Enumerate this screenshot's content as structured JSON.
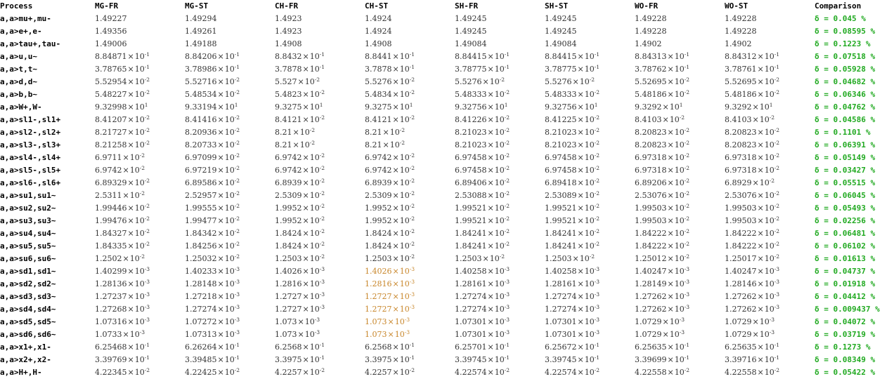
{
  "headers": [
    "Process",
    "MG-FR",
    "MG-ST",
    "CH-FR",
    "CH-ST",
    "SH-FR",
    "SH-ST",
    "WO-FR",
    "WO-ST",
    "Comparison"
  ],
  "colors": {
    "text": "#333333",
    "header": "#000000",
    "comparison": "#22aa22",
    "flagged": "#c8862a"
  },
  "rows": [
    {
      "process": "a,a>mu+,mu-",
      "values": [
        [
          "1.49227",
          null
        ],
        [
          "1.49294",
          null
        ],
        [
          "1.4923",
          null
        ],
        [
          "1.4924",
          null
        ],
        [
          "1.49245",
          null
        ],
        [
          "1.49245",
          null
        ],
        [
          "1.49228",
          null
        ],
        [
          "1.49228",
          null
        ]
      ],
      "comparison": "δ = 0.045 %"
    },
    {
      "process": "a,a>e+,e-",
      "values": [
        [
          "1.49356",
          null
        ],
        [
          "1.49261",
          null
        ],
        [
          "1.4923",
          null
        ],
        [
          "1.4924",
          null
        ],
        [
          "1.49245",
          null
        ],
        [
          "1.49245",
          null
        ],
        [
          "1.49228",
          null
        ],
        [
          "1.49228",
          null
        ]
      ],
      "comparison": "δ = 0.08595 %"
    },
    {
      "process": "a,a>tau+,tau-",
      "values": [
        [
          "1.49006",
          null
        ],
        [
          "1.49188",
          null
        ],
        [
          "1.4908",
          null
        ],
        [
          "1.4908",
          null
        ],
        [
          "1.49084",
          null
        ],
        [
          "1.49084",
          null
        ],
        [
          "1.4902",
          null
        ],
        [
          "1.4902",
          null
        ]
      ],
      "comparison": "δ = 0.1223 %"
    },
    {
      "process": "a,a>u,u~",
      "values": [
        [
          "8.84871",
          "-1"
        ],
        [
          "8.84206",
          "-1"
        ],
        [
          "8.8432",
          "-1"
        ],
        [
          "8.8441",
          "-1"
        ],
        [
          "8.84415",
          "-1"
        ],
        [
          "8.84415",
          "-1"
        ],
        [
          "8.84313",
          "-1"
        ],
        [
          "8.84312",
          "-1"
        ]
      ],
      "comparison": "δ = 0.07518 %"
    },
    {
      "process": "a,a>t,t~",
      "values": [
        [
          "3.78765",
          "-1"
        ],
        [
          "3.78986",
          "-1"
        ],
        [
          "3.7878",
          "-1"
        ],
        [
          "3.7878",
          "-1"
        ],
        [
          "3.78775",
          "-1"
        ],
        [
          "3.78775",
          "-1"
        ],
        [
          "3.78762",
          "-1"
        ],
        [
          "3.78761",
          "-1"
        ]
      ],
      "comparison": "δ = 0.05928 %"
    },
    {
      "process": "a,a>d,d~",
      "values": [
        [
          "5.52954",
          "-2"
        ],
        [
          "5.52716",
          "-2"
        ],
        [
          "5.527",
          "-2"
        ],
        [
          "5.5276",
          "-2"
        ],
        [
          "5.5276",
          "-2"
        ],
        [
          "5.5276",
          "-2"
        ],
        [
          "5.52695",
          "-2"
        ],
        [
          "5.52695",
          "-2"
        ]
      ],
      "comparison": "δ = 0.04682 %"
    },
    {
      "process": "a,a>b,b~",
      "values": [
        [
          "5.48227",
          "-2"
        ],
        [
          "5.48534",
          "-2"
        ],
        [
          "5.4823",
          "-2"
        ],
        [
          "5.4834",
          "-2"
        ],
        [
          "5.48333",
          "-2"
        ],
        [
          "5.48333",
          "-2"
        ],
        [
          "5.48186",
          "-2"
        ],
        [
          "5.48186",
          "-2"
        ]
      ],
      "comparison": "δ = 0.06346 %"
    },
    {
      "process": "a,a>W+,W-",
      "values": [
        [
          "9.32998",
          "1"
        ],
        [
          "9.33194",
          "1"
        ],
        [
          "9.3275",
          "1"
        ],
        [
          "9.3275",
          "1"
        ],
        [
          "9.32756",
          "1"
        ],
        [
          "9.32756",
          "1"
        ],
        [
          "9.3292",
          "1"
        ],
        [
          "9.3292",
          "1"
        ]
      ],
      "comparison": "δ = 0.04762 %"
    },
    {
      "process": "a,a>sl1-,sl1+",
      "values": [
        [
          "8.41207",
          "-2"
        ],
        [
          "8.41416",
          "-2"
        ],
        [
          "8.4121",
          "-2"
        ],
        [
          "8.4121",
          "-2"
        ],
        [
          "8.41226",
          "-2"
        ],
        [
          "8.41225",
          "-2"
        ],
        [
          "8.4103",
          "-2"
        ],
        [
          "8.4103",
          "-2"
        ]
      ],
      "comparison": "δ = 0.04586 %"
    },
    {
      "process": "a,a>sl2-,sl2+",
      "values": [
        [
          "8.21727",
          "-2"
        ],
        [
          "8.20936",
          "-2"
        ],
        [
          "8.21",
          "-2"
        ],
        [
          "8.21",
          "-2"
        ],
        [
          "8.21023",
          "-2"
        ],
        [
          "8.21023",
          "-2"
        ],
        [
          "8.20823",
          "-2"
        ],
        [
          "8.20823",
          "-2"
        ]
      ],
      "comparison": "δ = 0.1101 %"
    },
    {
      "process": "a,a>sl3-,sl3+",
      "values": [
        [
          "8.21258",
          "-2"
        ],
        [
          "8.20733",
          "-2"
        ],
        [
          "8.21",
          "-2"
        ],
        [
          "8.21",
          "-2"
        ],
        [
          "8.21023",
          "-2"
        ],
        [
          "8.21023",
          "-2"
        ],
        [
          "8.20823",
          "-2"
        ],
        [
          "8.20823",
          "-2"
        ]
      ],
      "comparison": "δ = 0.06391 %"
    },
    {
      "process": "a,a>sl4-,sl4+",
      "values": [
        [
          "6.9711",
          "-2"
        ],
        [
          "6.97099",
          "-2"
        ],
        [
          "6.9742",
          "-2"
        ],
        [
          "6.9742",
          "-2"
        ],
        [
          "6.97458",
          "-2"
        ],
        [
          "6.97458",
          "-2"
        ],
        [
          "6.97318",
          "-2"
        ],
        [
          "6.97318",
          "-2"
        ]
      ],
      "comparison": "δ = 0.05149 %"
    },
    {
      "process": "a,a>sl5-,sl5+",
      "values": [
        [
          "6.9742",
          "-2"
        ],
        [
          "6.97219",
          "-2"
        ],
        [
          "6.9742",
          "-2"
        ],
        [
          "6.9742",
          "-2"
        ],
        [
          "6.97458",
          "-2"
        ],
        [
          "6.97458",
          "-2"
        ],
        [
          "6.97318",
          "-2"
        ],
        [
          "6.97318",
          "-2"
        ]
      ],
      "comparison": "δ = 0.03427 %"
    },
    {
      "process": "a,a>sl6-,sl6+",
      "values": [
        [
          "6.89329",
          "-2"
        ],
        [
          "6.89586",
          "-2"
        ],
        [
          "6.8939",
          "-2"
        ],
        [
          "6.8939",
          "-2"
        ],
        [
          "6.89406",
          "-2"
        ],
        [
          "6.89418",
          "-2"
        ],
        [
          "6.89206",
          "-2"
        ],
        [
          "6.8929",
          "-2"
        ]
      ],
      "comparison": "δ = 0.05515 %"
    },
    {
      "process": "a,a>su1,su1~",
      "values": [
        [
          "2.5311",
          "-2"
        ],
        [
          "2.52957",
          "-2"
        ],
        [
          "2.5309",
          "-2"
        ],
        [
          "2.5309",
          "-2"
        ],
        [
          "2.53088",
          "-2"
        ],
        [
          "2.53089",
          "-2"
        ],
        [
          "2.53076",
          "-2"
        ],
        [
          "2.53076",
          "-2"
        ]
      ],
      "comparison": "δ = 0.06045 %"
    },
    {
      "process": "a,a>su2,su2~",
      "values": [
        [
          "1.99446",
          "-2"
        ],
        [
          "1.99555",
          "-2"
        ],
        [
          "1.9952",
          "-2"
        ],
        [
          "1.9952",
          "-2"
        ],
        [
          "1.99521",
          "-2"
        ],
        [
          "1.99521",
          "-2"
        ],
        [
          "1.99503",
          "-2"
        ],
        [
          "1.99503",
          "-2"
        ]
      ],
      "comparison": "δ = 0.05493 %"
    },
    {
      "process": "a,a>su3,su3~",
      "values": [
        [
          "1.99476",
          "-2"
        ],
        [
          "1.99477",
          "-2"
        ],
        [
          "1.9952",
          "-2"
        ],
        [
          "1.9952",
          "-2"
        ],
        [
          "1.99521",
          "-2"
        ],
        [
          "1.99521",
          "-2"
        ],
        [
          "1.99503",
          "-2"
        ],
        [
          "1.99503",
          "-2"
        ]
      ],
      "comparison": "δ = 0.02256 %"
    },
    {
      "process": "a,a>su4,su4~",
      "values": [
        [
          "1.84327",
          "-2"
        ],
        [
          "1.84342",
          "-2"
        ],
        [
          "1.8424",
          "-2"
        ],
        [
          "1.8424",
          "-2"
        ],
        [
          "1.84241",
          "-2"
        ],
        [
          "1.84241",
          "-2"
        ],
        [
          "1.84222",
          "-2"
        ],
        [
          "1.84222",
          "-2"
        ]
      ],
      "comparison": "δ = 0.06481 %"
    },
    {
      "process": "a,a>su5,su5~",
      "values": [
        [
          "1.84335",
          "-2"
        ],
        [
          "1.84256",
          "-2"
        ],
        [
          "1.8424",
          "-2"
        ],
        [
          "1.8424",
          "-2"
        ],
        [
          "1.84241",
          "-2"
        ],
        [
          "1.84241",
          "-2"
        ],
        [
          "1.84222",
          "-2"
        ],
        [
          "1.84222",
          "-2"
        ]
      ],
      "comparison": "δ = 0.06102 %"
    },
    {
      "process": "a,a>su6,su6~",
      "values": [
        [
          "1.2502",
          "-2"
        ],
        [
          "1.25032",
          "-2"
        ],
        [
          "1.2503",
          "-2"
        ],
        [
          "1.2503",
          "-2"
        ],
        [
          "1.2503",
          "-2"
        ],
        [
          "1.2503",
          "-2"
        ],
        [
          "1.25012",
          "-2"
        ],
        [
          "1.25017",
          "-2"
        ]
      ],
      "comparison": "δ = 0.01613 %"
    },
    {
      "process": "a,a>sd1,sd1~",
      "values": [
        [
          "1.40299",
          "-3"
        ],
        [
          "1.40233",
          "-3"
        ],
        [
          "1.4026",
          "-3"
        ],
        [
          "1.4026",
          "-3",
          "flag"
        ],
        [
          "1.40258",
          "-3"
        ],
        [
          "1.40258",
          "-3"
        ],
        [
          "1.40247",
          "-3"
        ],
        [
          "1.40247",
          "-3"
        ]
      ],
      "comparison": "δ = 0.04737 %"
    },
    {
      "process": "a,a>sd2,sd2~",
      "values": [
        [
          "1.28136",
          "-3"
        ],
        [
          "1.28148",
          "-3"
        ],
        [
          "1.2816",
          "-3"
        ],
        [
          "1.2816",
          "-3",
          "flag"
        ],
        [
          "1.28161",
          "-3"
        ],
        [
          "1.28161",
          "-3"
        ],
        [
          "1.28149",
          "-3"
        ],
        [
          "1.28146",
          "-3"
        ]
      ],
      "comparison": "δ = 0.01918 %"
    },
    {
      "process": "a,a>sd3,sd3~",
      "values": [
        [
          "1.27237",
          "-3"
        ],
        [
          "1.27218",
          "-3"
        ],
        [
          "1.2727",
          "-3"
        ],
        [
          "1.2727",
          "-3",
          "flag"
        ],
        [
          "1.27274",
          "-3"
        ],
        [
          "1.27274",
          "-3"
        ],
        [
          "1.27262",
          "-3"
        ],
        [
          "1.27262",
          "-3"
        ]
      ],
      "comparison": "δ = 0.04412 %"
    },
    {
      "process": "a,a>sd4,sd4~",
      "values": [
        [
          "1.27268",
          "-3"
        ],
        [
          "1.27274",
          "-3"
        ],
        [
          "1.2727",
          "-3"
        ],
        [
          "1.2727",
          "-3",
          "flag"
        ],
        [
          "1.27274",
          "-3"
        ],
        [
          "1.27274",
          "-3"
        ],
        [
          "1.27262",
          "-3"
        ],
        [
          "1.27262",
          "-3"
        ]
      ],
      "comparison": "δ = 0.009437 %"
    },
    {
      "process": "a,a>sd5,sd5~",
      "values": [
        [
          "1.07316",
          "-3"
        ],
        [
          "1.07272",
          "-3"
        ],
        [
          "1.073",
          "-3"
        ],
        [
          "1.073",
          "-3",
          "flag"
        ],
        [
          "1.07301",
          "-3"
        ],
        [
          "1.07301",
          "-3"
        ],
        [
          "1.0729",
          "-3"
        ],
        [
          "1.0729",
          "-3"
        ]
      ],
      "comparison": "δ = 0.04072 %"
    },
    {
      "process": "a,a>sd6,sd6~",
      "values": [
        [
          "1.0733",
          "-3"
        ],
        [
          "1.07313",
          "-3"
        ],
        [
          "1.073",
          "-3"
        ],
        [
          "1.073",
          "-3",
          "flag"
        ],
        [
          "1.07301",
          "-3"
        ],
        [
          "1.07301",
          "-3"
        ],
        [
          "1.0729",
          "-3"
        ],
        [
          "1.0729",
          "-3"
        ]
      ],
      "comparison": "δ = 0.03719 %"
    },
    {
      "process": "a,a>x1+,x1-",
      "values": [
        [
          "6.25468",
          "-1"
        ],
        [
          "6.26264",
          "-1"
        ],
        [
          "6.2568",
          "-1"
        ],
        [
          "6.2568",
          "-1"
        ],
        [
          "6.25701",
          "-1"
        ],
        [
          "6.25672",
          "-1"
        ],
        [
          "6.25635",
          "-1"
        ],
        [
          "6.25635",
          "-1"
        ]
      ],
      "comparison": "δ = 0.1273 %"
    },
    {
      "process": "a,a>x2+,x2-",
      "values": [
        [
          "3.39769",
          "-1"
        ],
        [
          "3.39485",
          "-1"
        ],
        [
          "3.3975",
          "-1"
        ],
        [
          "3.3975",
          "-1"
        ],
        [
          "3.39745",
          "-1"
        ],
        [
          "3.39745",
          "-1"
        ],
        [
          "3.39699",
          "-1"
        ],
        [
          "3.39716",
          "-1"
        ]
      ],
      "comparison": "δ = 0.08349 %"
    },
    {
      "process": "a,a>H+,H-",
      "values": [
        [
          "4.22345",
          "-2"
        ],
        [
          "4.22425",
          "-2"
        ],
        [
          "4.2257",
          "-2"
        ],
        [
          "4.2257",
          "-2"
        ],
        [
          "4.22574",
          "-2"
        ],
        [
          "4.22574",
          "-2"
        ],
        [
          "4.22558",
          "-2"
        ],
        [
          "4.22558",
          "-2"
        ]
      ],
      "comparison": "δ = 0.05422 %"
    }
  ]
}
